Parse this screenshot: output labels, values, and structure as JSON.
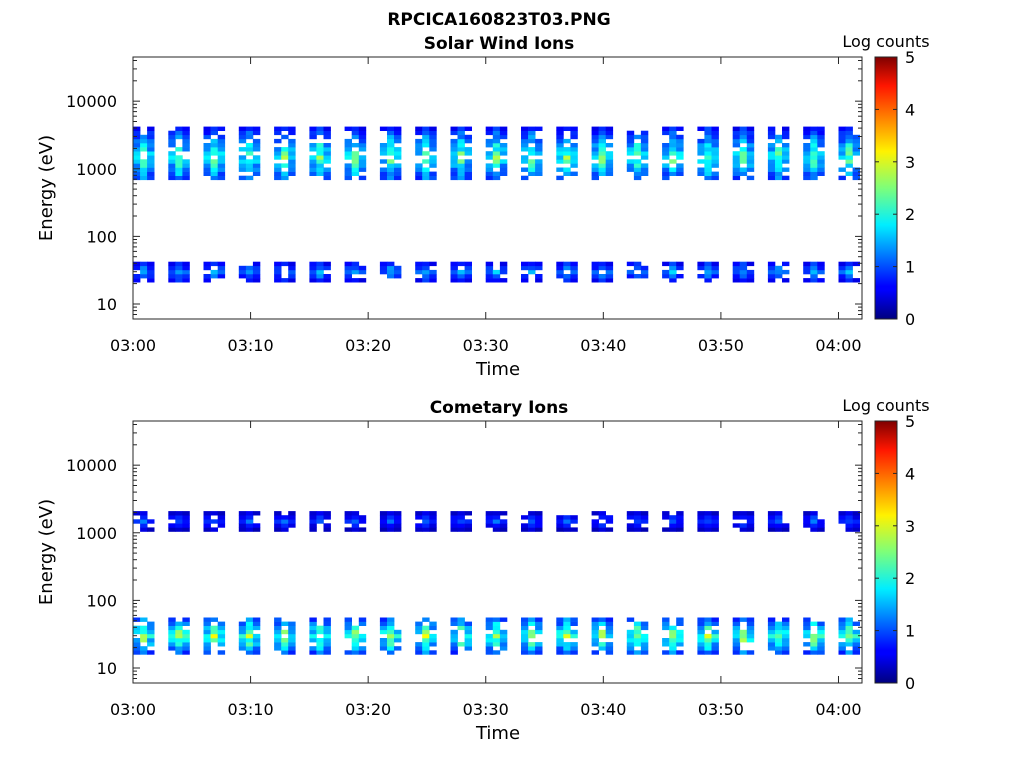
{
  "figure_title": "RPCICA160823T03.PNG",
  "chart_data": [
    {
      "type": "heatmap",
      "title": "Solar Wind Ions",
      "xlabel": "Time",
      "ylabel": "Energy (eV)",
      "y_scale": "log",
      "ylim": [
        6,
        45000
      ],
      "y_ticks": [
        10,
        100,
        1000,
        10000
      ],
      "y_tick_labels": [
        "10",
        "100",
        "1000",
        "10000"
      ],
      "xlim": [
        "03:00",
        "04:02"
      ],
      "x_ticks": [
        "03:00",
        "03:10",
        "03:20",
        "03:30",
        "03:40",
        "03:50",
        "04:00"
      ],
      "colorbar": {
        "label": "Log counts",
        "range": [
          0,
          5
        ],
        "ticks": [
          "0",
          "1",
          "2",
          "3",
          "4",
          "5"
        ],
        "colormap": "jet"
      },
      "burst_times": [
        "03:00",
        "03:03",
        "03:06",
        "03:09",
        "03:12",
        "03:15",
        "03:18",
        "03:21",
        "03:24",
        "03:27",
        "03:30",
        "03:33",
        "03:36",
        "03:39",
        "03:42",
        "03:45",
        "03:48",
        "03:51",
        "03:54",
        "03:57",
        "04:00"
      ],
      "bands": [
        {
          "energy_range": [
            700,
            4000
          ],
          "peak_energy": 1500,
          "max_log_counts": 2.6
        },
        {
          "energy_range": [
            20,
            45
          ],
          "peak_energy": 30,
          "max_log_counts": 1.6
        }
      ]
    },
    {
      "type": "heatmap",
      "title": "Cometary Ions",
      "xlabel": "Time",
      "ylabel": "Energy (eV)",
      "y_scale": "log",
      "ylim": [
        6,
        45000
      ],
      "y_ticks": [
        10,
        100,
        1000,
        10000
      ],
      "y_tick_labels": [
        "10",
        "100",
        "1000",
        "10000"
      ],
      "xlim": [
        "03:00",
        "04:02"
      ],
      "x_ticks": [
        "03:00",
        "03:10",
        "03:20",
        "03:30",
        "03:40",
        "03:50",
        "04:00"
      ],
      "colorbar": {
        "label": "Log counts",
        "range": [
          0,
          5
        ],
        "ticks": [
          "0",
          "1",
          "2",
          "3",
          "4",
          "5"
        ],
        "colormap": "jet"
      },
      "burst_times": [
        "03:00",
        "03:03",
        "03:06",
        "03:09",
        "03:12",
        "03:15",
        "03:18",
        "03:21",
        "03:24",
        "03:27",
        "03:30",
        "03:33",
        "03:36",
        "03:39",
        "03:42",
        "03:45",
        "03:48",
        "03:51",
        "03:54",
        "03:57",
        "04:00"
      ],
      "bands": [
        {
          "energy_range": [
            1100,
            2000
          ],
          "peak_energy": 1500,
          "max_log_counts": 1.2
        },
        {
          "energy_range": [
            15,
            55
          ],
          "peak_energy": 30,
          "max_log_counts": 2.9
        }
      ]
    }
  ]
}
